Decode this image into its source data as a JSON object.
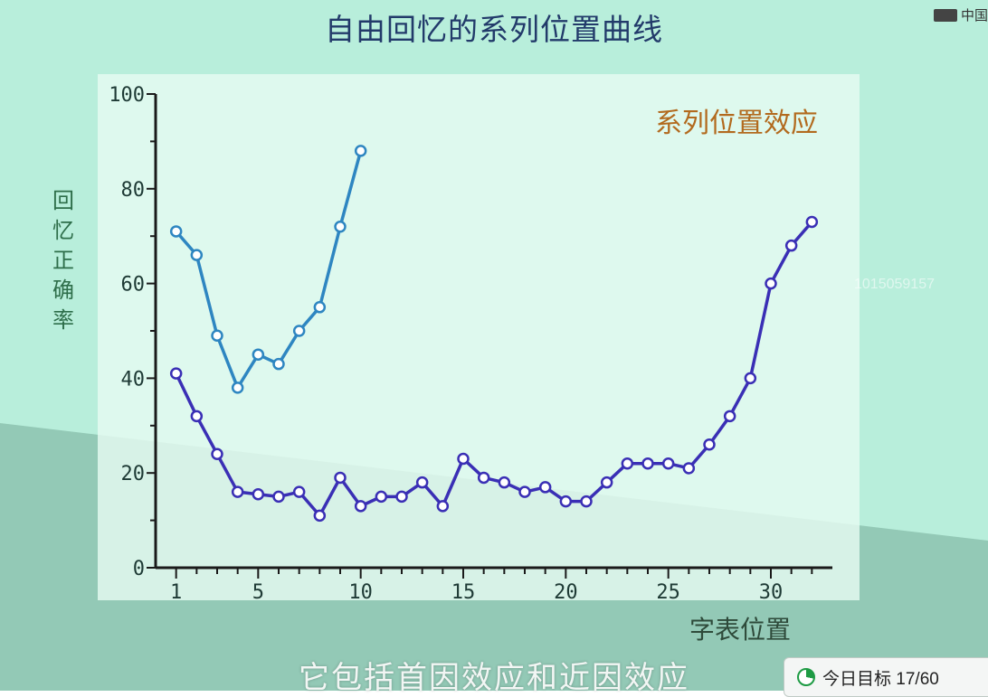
{
  "header": {
    "title": "自由回忆的系列位置曲线",
    "brand": "中国"
  },
  "caption": "它包括首因效应和近因效应",
  "watermark": "1015059157",
  "goal_widget": {
    "label": "今日目标 17/60",
    "progress": 0.28
  },
  "colors": {
    "bg_top": "#b8eedb",
    "bg_bottom": "#93c9b6",
    "plot_bg": "#e6fbf2",
    "series_primacy": "#2e86c1",
    "series_full": "#3a2fb5",
    "axis": "#1a1a1a",
    "annotation": "#b26a1e"
  },
  "chart_data": {
    "type": "line",
    "title": "自由回忆的系列位置曲线",
    "xlabel": "字表位置",
    "ylabel": "回忆正确率",
    "annotation": "系列位置效应",
    "xlim": [
      0,
      33
    ],
    "ylim": [
      0,
      100
    ],
    "xticks": [
      1,
      5,
      10,
      15,
      20,
      25,
      30
    ],
    "xtick_labels": [
      "1",
      "5",
      "10",
      "15",
      "20",
      "25",
      "30"
    ],
    "yticks": [
      0,
      20,
      40,
      60,
      80,
      100
    ],
    "ytick_labels": [
      "0",
      "20",
      "40",
      "60",
      "80",
      "100"
    ],
    "grid": false,
    "series": [
      {
        "color": "#2e86c1",
        "x": [
          1,
          2,
          3,
          4,
          5,
          6,
          7,
          8,
          9,
          10
        ],
        "y": [
          71,
          66,
          49,
          38,
          45,
          43,
          50,
          55,
          72,
          88
        ]
      },
      {
        "color": "#3a2fb5",
        "x": [
          1,
          2,
          3,
          4,
          5,
          6,
          7,
          8,
          9,
          10,
          11,
          12,
          13,
          14,
          15,
          16,
          17,
          18,
          19,
          20,
          21,
          22,
          23,
          24,
          25,
          26,
          27,
          28,
          29,
          30,
          31,
          32
        ],
        "y": [
          41,
          32,
          24,
          16,
          15.5,
          15,
          16,
          11,
          19,
          13,
          15,
          15,
          18,
          13,
          23,
          19,
          18,
          16,
          17,
          14,
          14,
          18,
          22,
          22,
          22,
          21,
          26,
          32,
          40,
          60,
          68,
          73
        ]
      }
    ]
  }
}
